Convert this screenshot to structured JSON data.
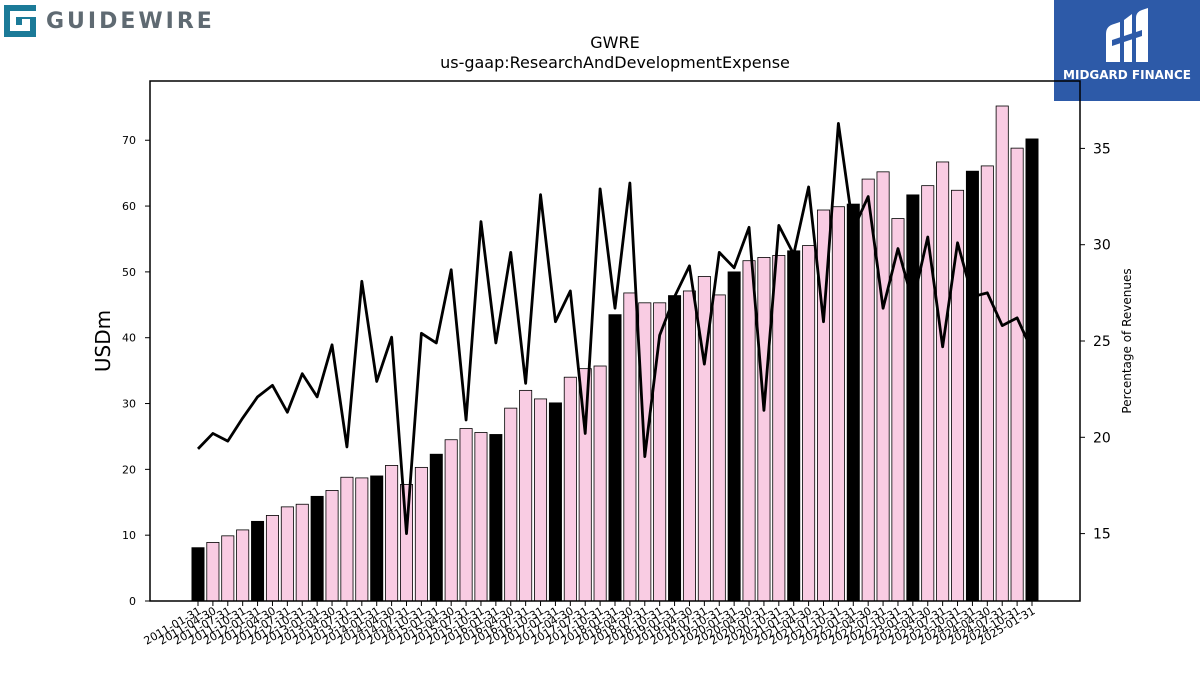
{
  "logos": {
    "left_text": "GUIDEWIRE",
    "right_text": "MIDGARD FINANCE"
  },
  "colors": {
    "fy_bar": "#000000",
    "quarter_bar": "#f9cce3",
    "line": "#000000",
    "brand_right": "#2d5aa8",
    "brand_left_icon": "#1b7a98"
  },
  "chart_data": {
    "type": "bar",
    "title": "GWRE",
    "subtitle": "us-gaap:ResearchAndDevelopmentExpense",
    "ylabel": "USDm",
    "ylabel2": "Percentage of Revenues",
    "ylim": [
      0,
      79
    ],
    "ylim2": [
      11.5,
      38.5
    ],
    "yticks": [
      0,
      10,
      20,
      30,
      40,
      50,
      60,
      70
    ],
    "yticks2": [
      15,
      20,
      25,
      30,
      35
    ],
    "legend": "none",
    "grid": false,
    "x": [
      "2011-01-31",
      "2011-04-30",
      "2011-07-31",
      "2011-10-31",
      "2012-01-31",
      "2012-04-30",
      "2012-07-31",
      "2012-10-31",
      "2013-01-31",
      "2013-04-30",
      "2013-07-31",
      "2013-10-31",
      "2014-01-31",
      "2014-04-30",
      "2014-07-31",
      "2014-10-31",
      "2015-01-31",
      "2015-04-30",
      "2015-07-31",
      "2015-10-31",
      "2016-01-31",
      "2016-04-30",
      "2016-07-31",
      "2016-10-31",
      "2017-01-31",
      "2017-04-30",
      "2017-07-31",
      "2017-10-31",
      "2018-01-31",
      "2018-04-30",
      "2018-07-31",
      "2018-10-31",
      "2019-01-31",
      "2019-04-30",
      "2019-07-31",
      "2019-10-31",
      "2020-01-31",
      "2020-04-30",
      "2020-07-31",
      "2020-10-31",
      "2021-01-31",
      "2021-04-30",
      "2021-07-31",
      "2021-10-31",
      "2022-01-31",
      "2022-04-30",
      "2022-07-31",
      "2022-10-31",
      "2023-01-31",
      "2023-04-30",
      "2023-07-31",
      "2023-10-31",
      "2024-01-31",
      "2024-04-30",
      "2024-07-31",
      "2024-10-31",
      "2025-01-31"
    ],
    "xtick_labels": [
      "2011-01-31",
      "2011-04-30",
      "2011-07-31",
      "2011-10-31",
      "2012-01-31",
      "2012-04-30",
      "2012-07-31",
      "2012-10-31",
      "2013-01-31",
      "2013-04-30",
      "2013-07-31",
      "2013-10-31",
      "2014-01-31",
      "2014-04-30",
      "2014-07-31",
      "2014-10-31",
      "2015-01-31",
      "2015-04-30",
      "2015-07-31",
      "2015-10-31",
      "2016-01-31",
      "2016-04-30",
      "2016-07-31",
      "2016-10-31",
      "2017-01-31",
      "2017-04-30",
      "2017-07-31",
      "2017-10-31",
      "2018-01-31",
      "2018-04-30",
      "2018-07-31",
      "2018-10-31",
      "2019-01-31",
      "2019-04-30",
      "2019-07-31",
      "2019-10-31",
      "2020-01-31",
      "2020-04-30",
      "2020-07-31",
      "2020-10-31",
      "2021-01-31",
      "2021-04-30",
      "2021-07-31",
      "2021-10-31",
      "2022-01-31",
      "2022-04-30",
      "2022-07-31",
      "2022-10-31",
      "2023-01-31",
      "2023-04-30",
      "2023-07-31",
      "2023-10-31",
      "2024-01-31",
      "2024-04-30",
      "2024-07-31",
      "2024-10-31",
      "2025-01-31"
    ],
    "series": [
      {
        "type": "bar",
        "values": [
          8.1,
          8.9,
          9.9,
          10.8,
          12.1,
          13.0,
          14.3,
          14.7,
          15.9,
          16.8,
          18.8,
          18.7,
          19.0,
          20.6,
          17.7,
          20.3,
          22.3,
          24.5,
          26.2,
          25.6,
          25.3,
          29.3,
          32.0,
          30.7,
          30.1,
          34.0,
          35.3,
          35.7,
          43.5,
          46.8,
          45.3,
          45.3,
          46.4,
          47.1,
          49.3,
          46.5,
          50.0,
          51.7,
          52.2,
          52.5,
          53.2,
          54.0,
          59.4,
          59.9,
          60.3,
          64.1,
          65.2,
          58.1,
          61.7,
          63.1,
          66.7,
          62.4,
          65.3,
          66.1,
          75.2,
          68.8,
          70.2
        ],
        "fiscal_year_end": [
          true,
          false,
          false,
          false,
          true,
          false,
          false,
          false,
          true,
          false,
          false,
          false,
          true,
          false,
          false,
          false,
          true,
          false,
          false,
          false,
          true,
          false,
          false,
          false,
          true,
          false,
          false,
          false,
          true,
          false,
          false,
          false,
          true,
          false,
          false,
          false,
          true,
          false,
          false,
          false,
          true,
          false,
          false,
          false,
          true,
          false,
          false,
          false,
          true,
          false,
          false,
          false,
          true,
          false,
          false,
          false,
          true
        ]
      },
      {
        "type": "line",
        "axis": "right",
        "values": [
          19.4,
          20.2,
          19.8,
          21.0,
          22.1,
          22.7,
          21.3,
          23.3,
          22.1,
          24.8,
          19.5,
          28.1,
          22.9,
          25.2,
          15.0,
          25.4,
          24.9,
          28.7,
          20.9,
          31.2,
          24.9,
          29.6,
          22.8,
          32.6,
          26.0,
          27.6,
          20.2,
          32.9,
          26.7,
          33.2,
          19.0,
          25.3,
          27.3,
          28.9,
          23.8,
          29.6,
          28.8,
          30.9,
          21.4,
          31.0,
          29.5,
          33.0,
          26.0,
          36.3,
          30.8,
          32.5,
          26.7,
          29.8,
          27.0,
          30.4,
          24.7,
          30.1,
          27.3,
          27.5,
          25.8,
          26.2,
          24.5
        ]
      }
    ]
  }
}
